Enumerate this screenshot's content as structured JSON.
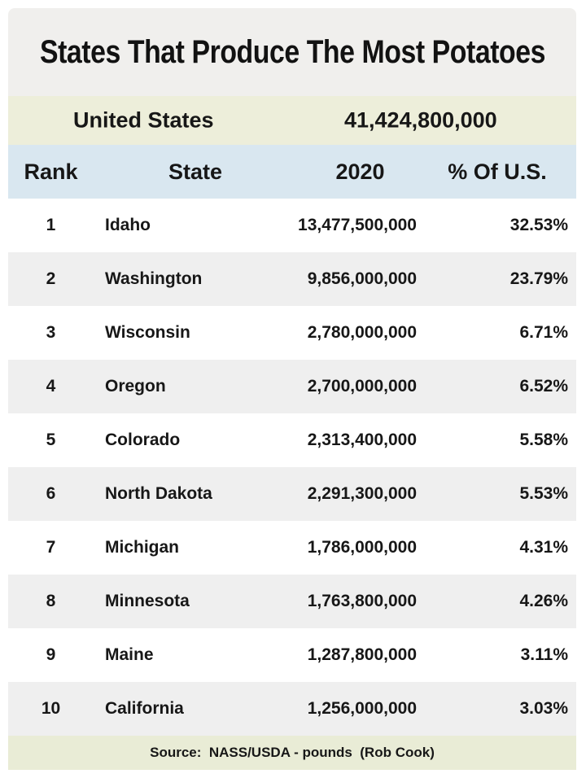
{
  "title": "States That Produce The Most Potatoes",
  "summary": {
    "label": "United States",
    "total": "41,424,800,000"
  },
  "table": {
    "columns": {
      "rank": "Rank",
      "state": "State",
      "year": "2020",
      "pct": "% Of U.S."
    },
    "rows": [
      {
        "rank": "1",
        "state": "Idaho",
        "value": "13,477,500,000",
        "pct": "32.53%"
      },
      {
        "rank": "2",
        "state": "Washington",
        "value": "9,856,000,000",
        "pct": "23.79%"
      },
      {
        "rank": "3",
        "state": "Wisconsin",
        "value": "2,780,000,000",
        "pct": "6.71%"
      },
      {
        "rank": "4",
        "state": "Oregon",
        "value": "2,700,000,000",
        "pct": "6.52%"
      },
      {
        "rank": "5",
        "state": "Colorado",
        "value": "2,313,400,000",
        "pct": "5.58%"
      },
      {
        "rank": "6",
        "state": "North Dakota",
        "value": "2,291,300,000",
        "pct": "5.53%"
      },
      {
        "rank": "7",
        "state": "Michigan",
        "value": "1,786,000,000",
        "pct": "4.31%"
      },
      {
        "rank": "8",
        "state": "Minnesota",
        "value": "1,763,800,000",
        "pct": "4.26%"
      },
      {
        "rank": "9",
        "state": "Maine",
        "value": "1,287,800,000",
        "pct": "3.11%"
      },
      {
        "rank": "10",
        "state": "California",
        "value": "1,256,000,000",
        "pct": "3.03%"
      }
    ]
  },
  "footer": {
    "source": "Source:  NASS/USDA - pounds  (Rob Cook)"
  },
  "colors": {
    "title_bg": "#f0efed",
    "summary_bg": "#edeeda",
    "header_bg": "#d9e7f0",
    "row_bg": "#ffffff",
    "row_alt_bg": "#efefef",
    "footer_bg": "#e9ecd6",
    "text": "#171717"
  },
  "chart_data": {
    "type": "table",
    "title": "States That Produce The Most Potatoes",
    "columns": [
      "Rank",
      "State",
      "2020",
      "% Of U.S."
    ],
    "summary_row": {
      "label": "United States",
      "value_2020": 41424800000
    },
    "rows": [
      [
        1,
        "Idaho",
        13477500000,
        32.53
      ],
      [
        2,
        "Washington",
        9856000000,
        23.79
      ],
      [
        3,
        "Wisconsin",
        2780000000,
        6.71
      ],
      [
        4,
        "Oregon",
        2700000000,
        6.52
      ],
      [
        5,
        "Colorado",
        2313400000,
        5.58
      ],
      [
        6,
        "North Dakota",
        2291300000,
        5.53
      ],
      [
        7,
        "Michigan",
        1786000000,
        4.31
      ],
      [
        8,
        "Minnesota",
        1763800000,
        4.26
      ],
      [
        9,
        "Maine",
        1287800000,
        3.11
      ],
      [
        10,
        "California",
        1256000000,
        3.03
      ]
    ],
    "source_note": "Source:  NASS/USDA - pounds  (Rob Cook)",
    "units": "pounds",
    "year": "2020"
  }
}
